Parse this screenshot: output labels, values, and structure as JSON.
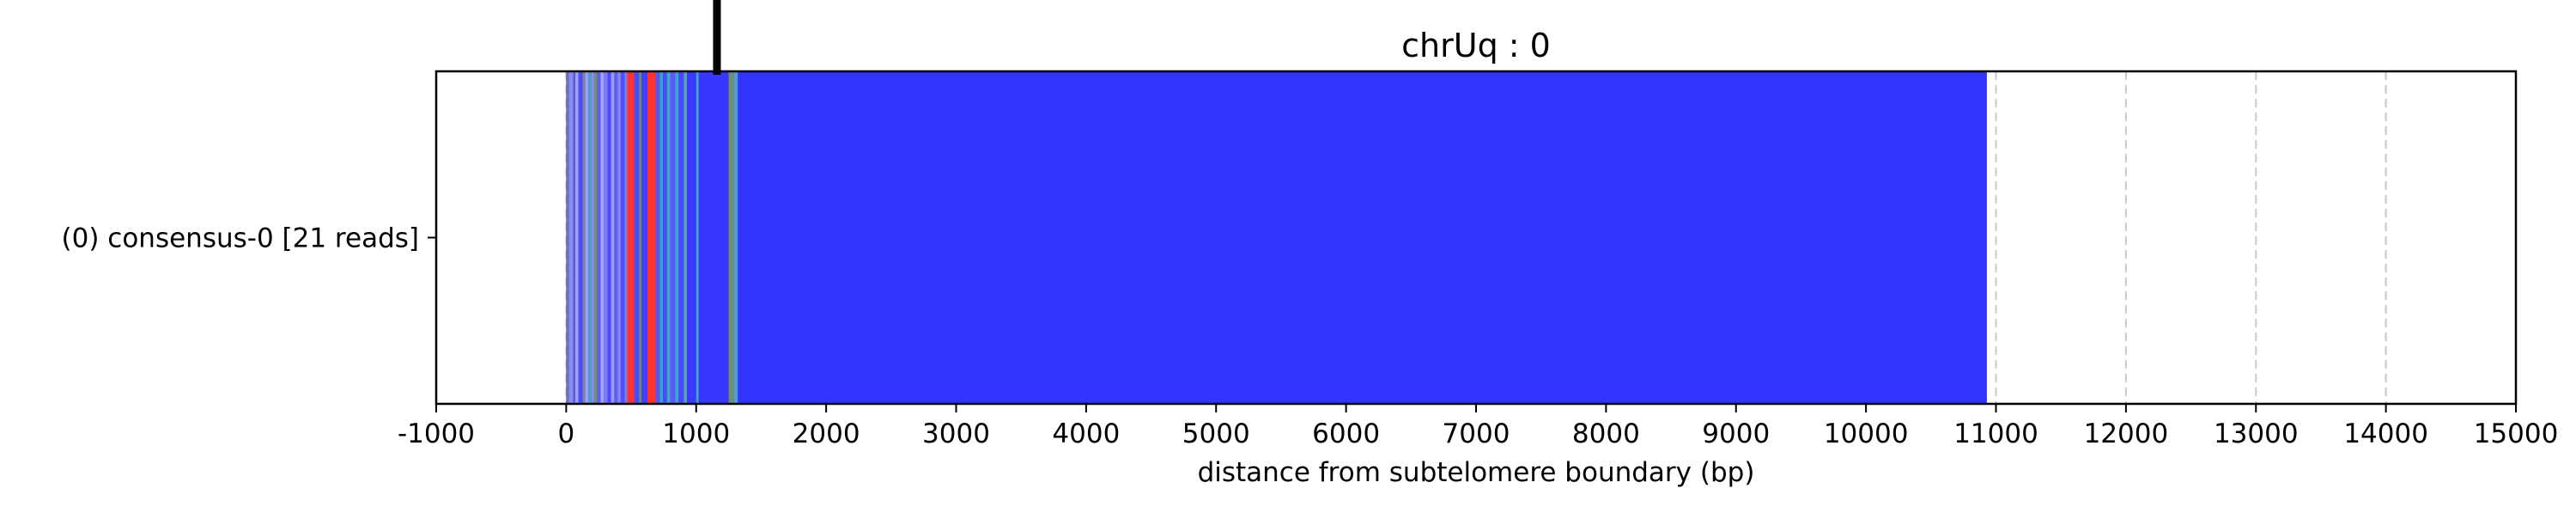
{
  "chart_data": {
    "type": "bar",
    "title": "chrUq : 0",
    "xlabel": "distance from subtelomere boundary (bp)",
    "ylabel": "",
    "xlim": [
      -1000,
      15000
    ],
    "xticks": [
      -1000,
      0,
      1000,
      2000,
      3000,
      4000,
      5000,
      6000,
      7000,
      8000,
      9000,
      10000,
      11000,
      12000,
      13000,
      14000,
      15000
    ],
    "xtick_labels": [
      "-1000",
      "0",
      "1000",
      "2000",
      "3000",
      "4000",
      "5000",
      "6000",
      "7000",
      "8000",
      "9000",
      "10000",
      "11000",
      "12000",
      "13000",
      "14000",
      "15000"
    ],
    "grid": "vertical dashed",
    "tracks": [
      {
        "label": "(0) consensus-0 [21 reads]",
        "start": 0,
        "end": 10930,
        "base_color": "#3333ff",
        "segments": [
          {
            "start": 0,
            "end": 20,
            "color": "#6e6eb4"
          },
          {
            "start": 20,
            "end": 55,
            "color": "#8a8af0"
          },
          {
            "start": 55,
            "end": 70,
            "color": "#5b5bd6"
          },
          {
            "start": 70,
            "end": 95,
            "color": "#a0a0f5"
          },
          {
            "start": 95,
            "end": 125,
            "color": "#4b4bff"
          },
          {
            "start": 125,
            "end": 145,
            "color": "#7d7d9c"
          },
          {
            "start": 145,
            "end": 170,
            "color": "#9f9ff2"
          },
          {
            "start": 170,
            "end": 195,
            "color": "#4ea0c8"
          },
          {
            "start": 195,
            "end": 215,
            "color": "#8a8af0"
          },
          {
            "start": 215,
            "end": 240,
            "color": "#6f8f6f"
          },
          {
            "start": 240,
            "end": 265,
            "color": "#5d5df2"
          },
          {
            "start": 265,
            "end": 290,
            "color": "#a3a3f7"
          },
          {
            "start": 290,
            "end": 320,
            "color": "#7a7af4"
          },
          {
            "start": 320,
            "end": 345,
            "color": "#4a4aff"
          },
          {
            "start": 345,
            "end": 370,
            "color": "#9c9cf5"
          },
          {
            "start": 370,
            "end": 395,
            "color": "#6060ee"
          },
          {
            "start": 395,
            "end": 420,
            "color": "#8585e8"
          },
          {
            "start": 420,
            "end": 450,
            "color": "#5050f8"
          },
          {
            "start": 450,
            "end": 470,
            "color": "#7c7cf0"
          },
          {
            "start": 470,
            "end": 525,
            "color": "#ff3333"
          },
          {
            "start": 525,
            "end": 560,
            "color": "#4a4aff"
          },
          {
            "start": 560,
            "end": 580,
            "color": "#6a8c6a"
          },
          {
            "start": 580,
            "end": 625,
            "color": "#4040ff"
          },
          {
            "start": 625,
            "end": 690,
            "color": "#ff3333"
          },
          {
            "start": 690,
            "end": 720,
            "color": "#5555f0"
          },
          {
            "start": 720,
            "end": 745,
            "color": "#3aa0d0"
          },
          {
            "start": 745,
            "end": 775,
            "color": "#4a4aff"
          },
          {
            "start": 775,
            "end": 800,
            "color": "#3fa8c8"
          },
          {
            "start": 800,
            "end": 840,
            "color": "#5a5afa"
          },
          {
            "start": 840,
            "end": 865,
            "color": "#3ea6cc"
          },
          {
            "start": 865,
            "end": 905,
            "color": "#4848ff"
          },
          {
            "start": 905,
            "end": 930,
            "color": "#5aa0b0"
          },
          {
            "start": 930,
            "end": 1000,
            "color": "#3939ff"
          },
          {
            "start": 1000,
            "end": 1020,
            "color": "#44a2cc"
          },
          {
            "start": 1020,
            "end": 1250,
            "color": "#3737ff"
          },
          {
            "start": 1250,
            "end": 1290,
            "color": "#6f8f6f"
          },
          {
            "start": 1290,
            "end": 1320,
            "color": "#4ea0c8"
          }
        ]
      }
    ],
    "marker_x": 1160
  }
}
